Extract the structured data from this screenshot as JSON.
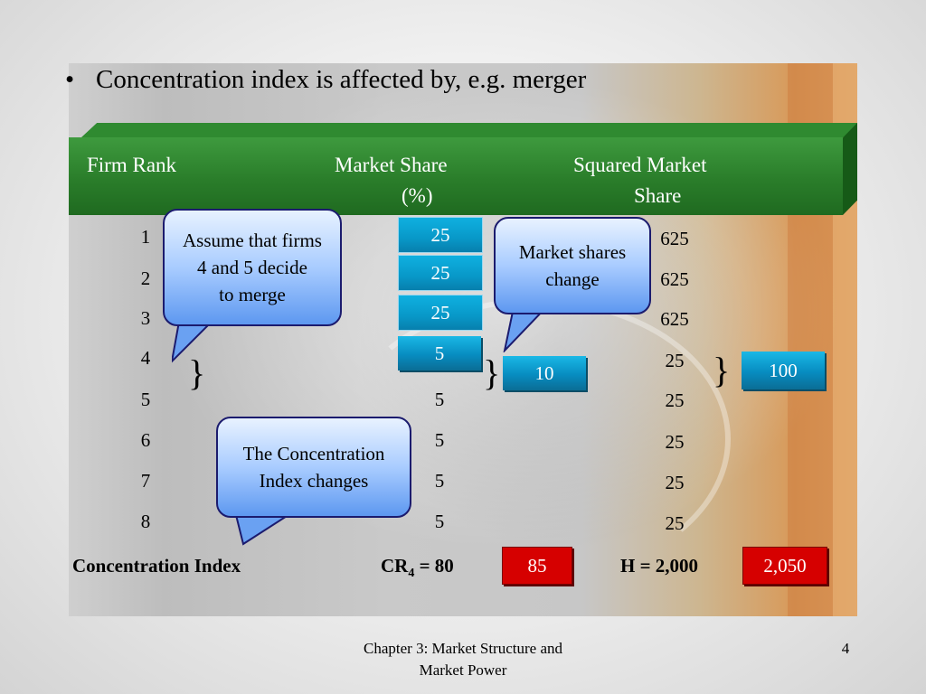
{
  "bullet": {
    "dot": "•",
    "text": "Concentration index is affected by, e.g. merger"
  },
  "headers": {
    "rank": "Firm Rank",
    "share_line1": "Market Share",
    "share_line2": "(%)",
    "sq_line1": "Squared Market",
    "sq_line2": "Share"
  },
  "ranks": [
    "1",
    "2",
    "3",
    "4",
    "5",
    "6",
    "7",
    "8"
  ],
  "shares_top": [
    "25",
    "25",
    "25",
    "5"
  ],
  "shares_bottom": [
    "5",
    "5",
    "5",
    "5"
  ],
  "squared": [
    "625",
    "625",
    "625",
    "25",
    "25",
    "25",
    "25",
    "25"
  ],
  "merged_share": "10",
  "merged_squared": "100",
  "brace": "}",
  "callouts": {
    "merge": [
      "Assume that firms",
      "4 and 5 decide",
      "to merge"
    ],
    "shares": [
      "Market shares",
      "change"
    ],
    "index": [
      "The Concentration",
      "Index changes"
    ]
  },
  "bottom": {
    "label": "Concentration Index",
    "cr_prefix": "CR",
    "cr_sub": "4",
    "cr_suffix": " = 80",
    "cr_new": "85",
    "h_old": "H = 2,000",
    "h_new": "2,050"
  },
  "footer": {
    "line1": "Chapter 3: Market Structure and",
    "line2": "Market Power",
    "page": "4"
  }
}
